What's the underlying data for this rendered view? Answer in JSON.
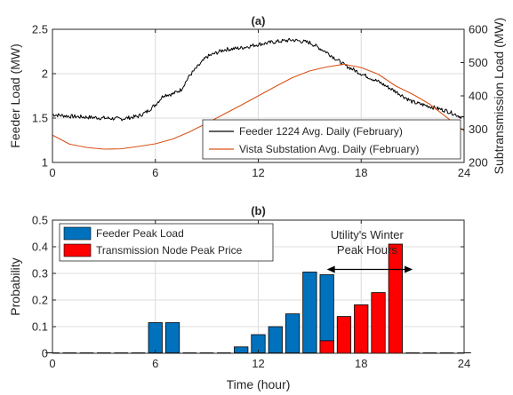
{
  "chart_data": [
    {
      "panel_title": "(a)",
      "type": "line",
      "xlabel": "",
      "ylabel": "Feeder Load (MW)",
      "y2label": "Subtransmission Load (MW)",
      "xlim": [
        0,
        24
      ],
      "ylim": [
        1,
        2.5
      ],
      "y2lim": [
        200,
        600
      ],
      "xticks": [
        0,
        6,
        12,
        18,
        24
      ],
      "yticks": [
        1,
        1.5,
        2,
        2.5
      ],
      "y2ticks": [
        200,
        300,
        400,
        500,
        600
      ],
      "grid": true,
      "legend": "bottom-right",
      "series": [
        {
          "name": "Feeder 1224 Avg. Daily (February)",
          "axis": "left",
          "color": "#000000",
          "noisy": true,
          "x": [
            0,
            1,
            2,
            3,
            4,
            5,
            5.5,
            6,
            6.5,
            7,
            7.5,
            8,
            9,
            10,
            11,
            12,
            13,
            14,
            15,
            16,
            17,
            18,
            19,
            20,
            21,
            22,
            23,
            24
          ],
          "y": [
            1.54,
            1.52,
            1.51,
            1.5,
            1.49,
            1.52,
            1.57,
            1.65,
            1.76,
            1.77,
            1.82,
            1.98,
            2.19,
            2.27,
            2.29,
            2.33,
            2.36,
            2.38,
            2.35,
            2.24,
            2.1,
            2.0,
            1.91,
            1.8,
            1.68,
            1.63,
            1.58,
            1.5
          ]
        },
        {
          "name": "Vista Substation Avg. Daily  (February)",
          "axis": "right",
          "color": "#d95319",
          "noisy": false,
          "x": [
            0,
            1,
            2,
            3,
            4,
            5,
            6,
            7,
            8,
            9,
            10,
            11,
            12,
            13,
            14,
            15,
            16,
            17,
            18,
            19,
            20,
            21,
            22,
            23,
            24
          ],
          "y": [
            282,
            255,
            245,
            240,
            241,
            248,
            256,
            270,
            292,
            318,
            345,
            372,
            400,
            428,
            455,
            475,
            487,
            495,
            485,
            465,
            430,
            405,
            375,
            335,
            295
          ]
        }
      ]
    },
    {
      "panel_title": "(b)",
      "type": "bar",
      "xlabel": "Time (hour)",
      "ylabel": "Probability",
      "xlim": [
        0,
        24
      ],
      "ylim": [
        0,
        0.5
      ],
      "xticks": [
        0,
        6,
        12,
        18,
        24
      ],
      "yticks": [
        0,
        0.1,
        0.2,
        0.3,
        0.4,
        0.5
      ],
      "grid": true,
      "legend": "top-left",
      "x": [
        0,
        1,
        2,
        3,
        4,
        5,
        6,
        7,
        8,
        9,
        10,
        11,
        12,
        13,
        14,
        15,
        16,
        17,
        18,
        19,
        20,
        21,
        22,
        23,
        24
      ],
      "series": [
        {
          "name": "Feeder Peak Load",
          "color": "#0072bd",
          "values": [
            0,
            0,
            0,
            0,
            0,
            0,
            0.115,
            0.115,
            0,
            0,
            0,
            0.024,
            0.07,
            0.1,
            0.148,
            0.305,
            0.295,
            0,
            0,
            0,
            0,
            0,
            0,
            0,
            0
          ]
        },
        {
          "name": "Transmission Node Peak Price",
          "color": "#ff0000",
          "values": [
            0,
            0,
            0,
            0,
            0,
            0,
            0,
            0,
            0,
            0,
            0,
            0,
            0,
            0,
            0,
            0,
            0.047,
            0.138,
            0.182,
            0.228,
            0.41,
            0,
            0,
            0,
            0
          ]
        }
      ],
      "annotation": {
        "lines": [
          "Utility's Winter",
          "Peak Hours"
        ],
        "x_from": 16,
        "x_to": 21,
        "y": 0.315
      }
    }
  ]
}
